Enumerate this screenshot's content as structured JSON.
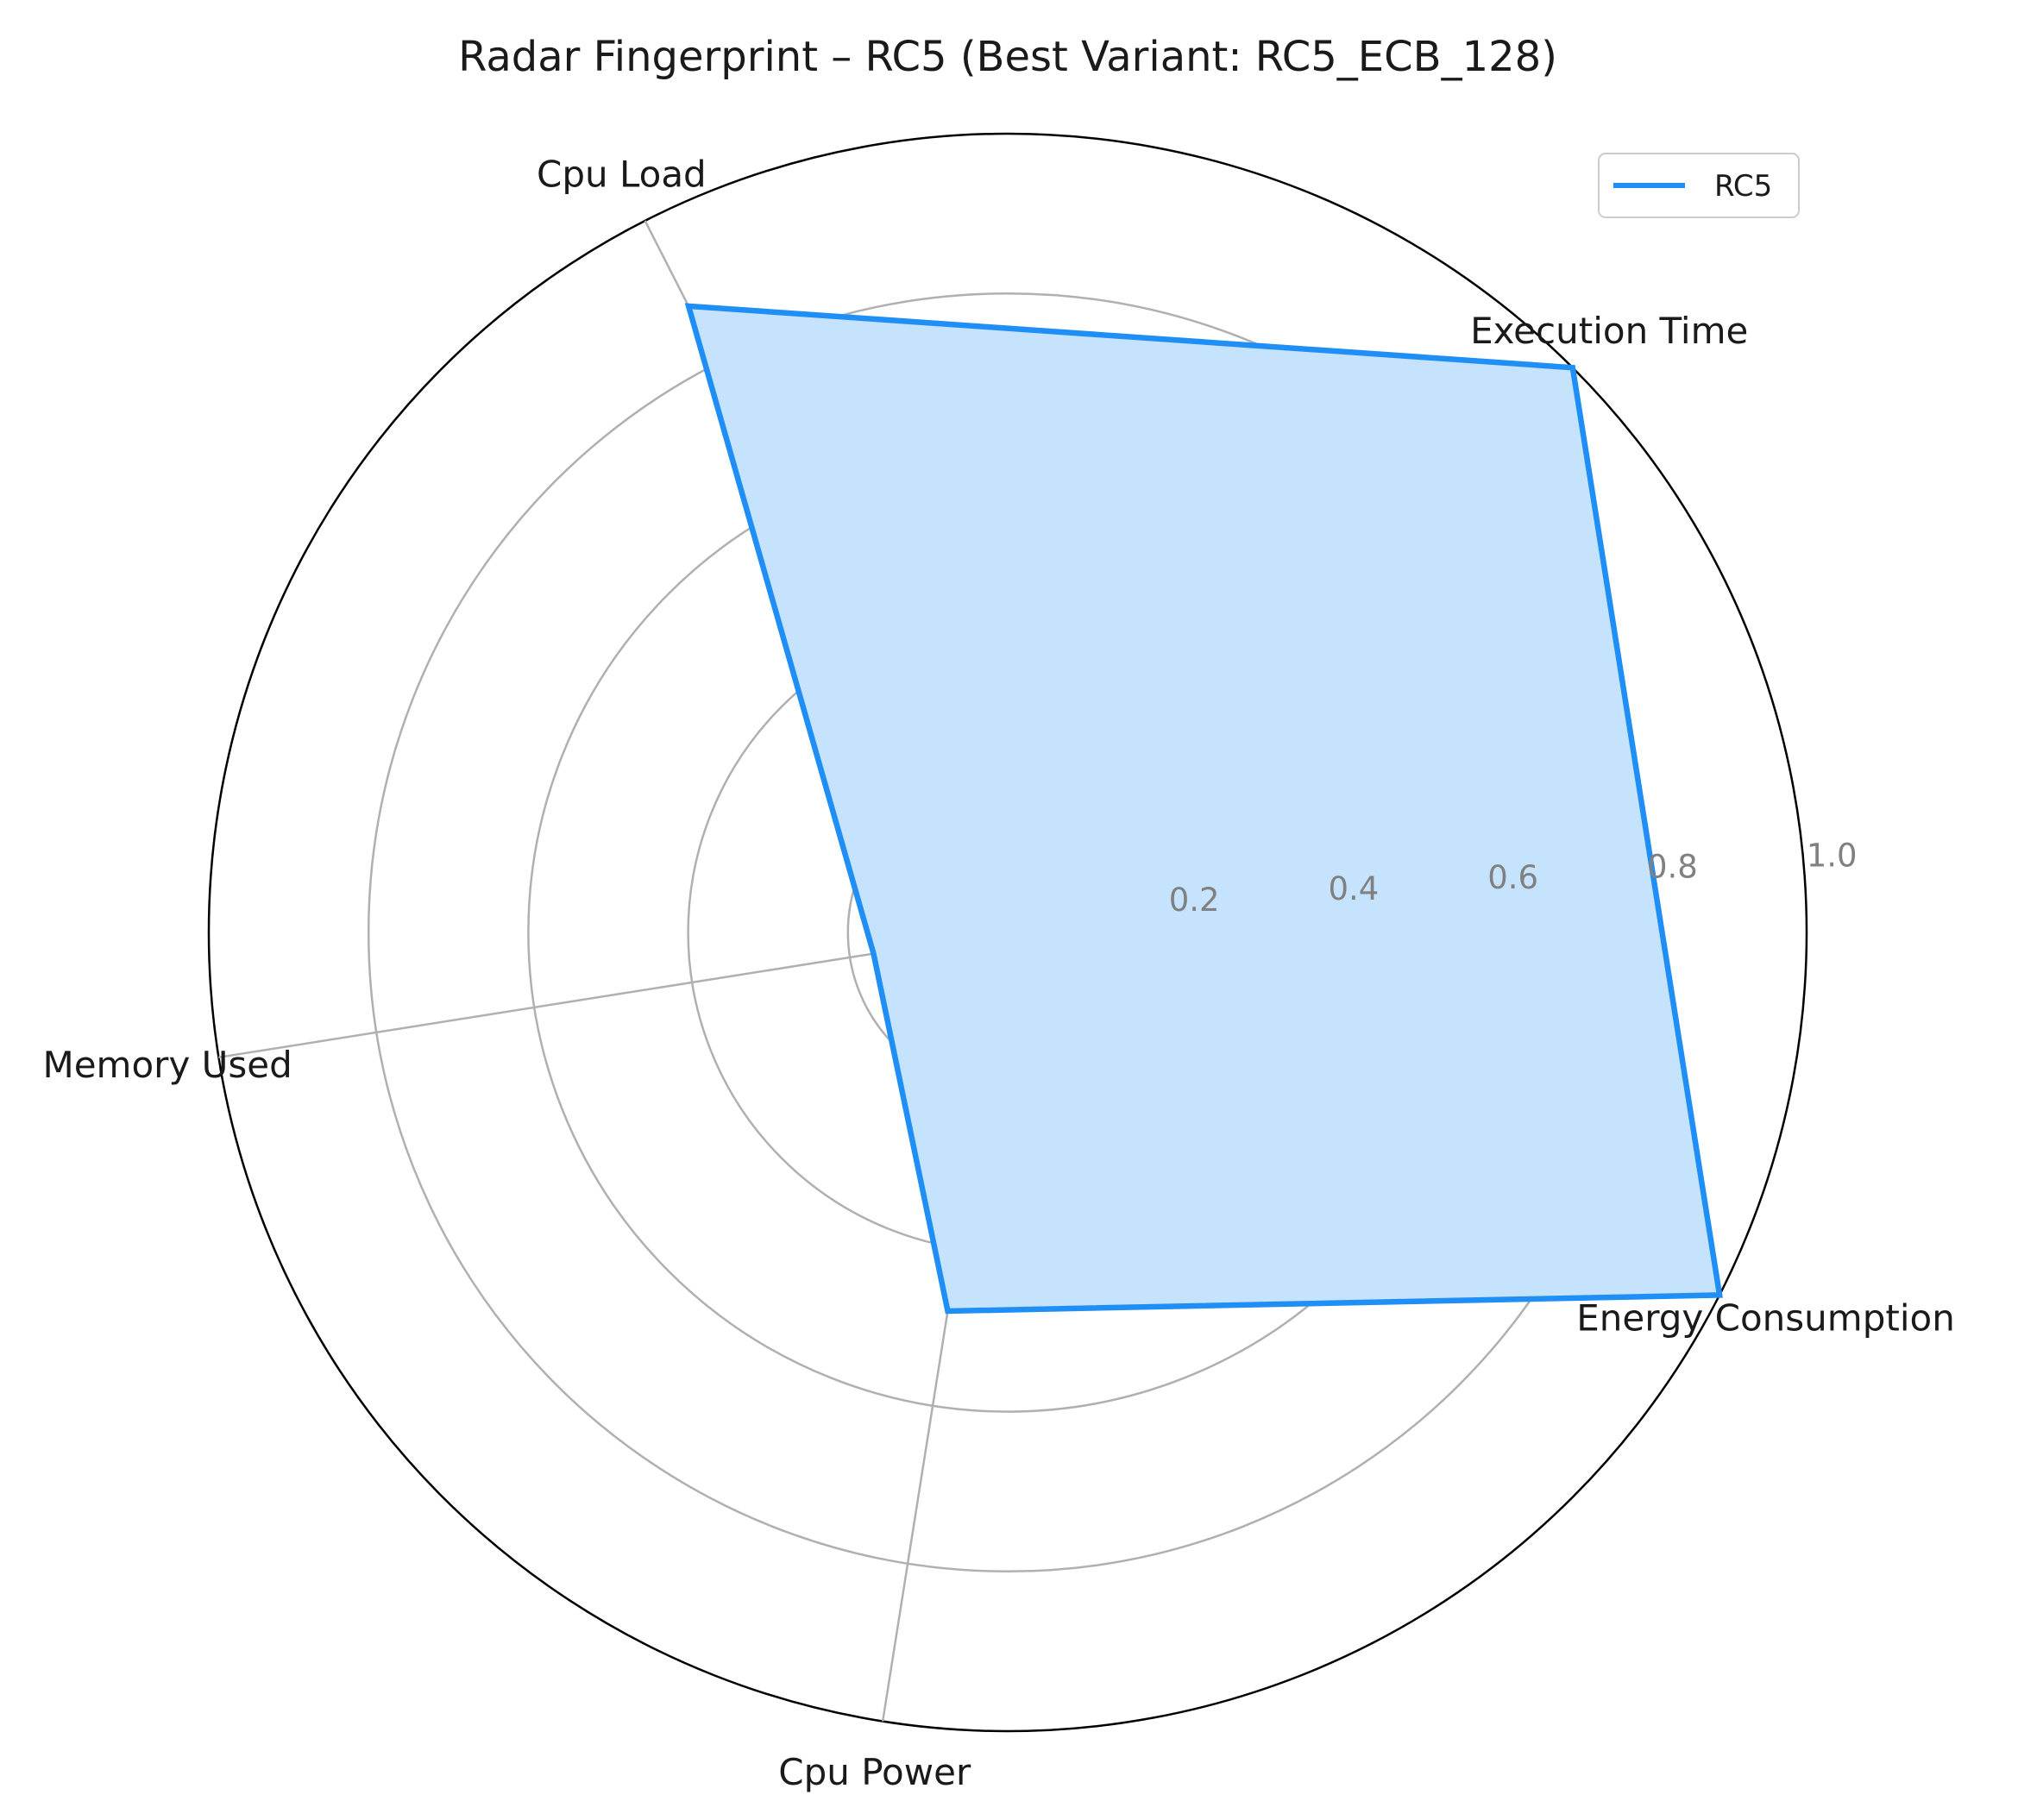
{
  "chart_data": {
    "type": "radar",
    "title": "Radar Fingerprint – RC5 (Best Variant: RC5_ECB_128)",
    "axes": [
      "Execution Time",
      "Cpu Load",
      "Memory Used",
      "Cpu Power",
      "Energy Consumption"
    ],
    "rlim": [
      0,
      1.0
    ],
    "rticks": [
      0.2,
      0.4,
      0.6,
      0.8,
      1.0
    ],
    "rtick_labels": [
      "0.2",
      "0.4",
      "0.6",
      "0.8",
      "1.0"
    ],
    "grid": true,
    "legend_position": "top-right",
    "series": [
      {
        "name": "RC5",
        "values": [
          1.0,
          0.88,
          0.17,
          0.48,
          1.0
        ],
        "line_color": "#1f8ff5",
        "fill_color": "#c6e3fd"
      }
    ]
  }
}
